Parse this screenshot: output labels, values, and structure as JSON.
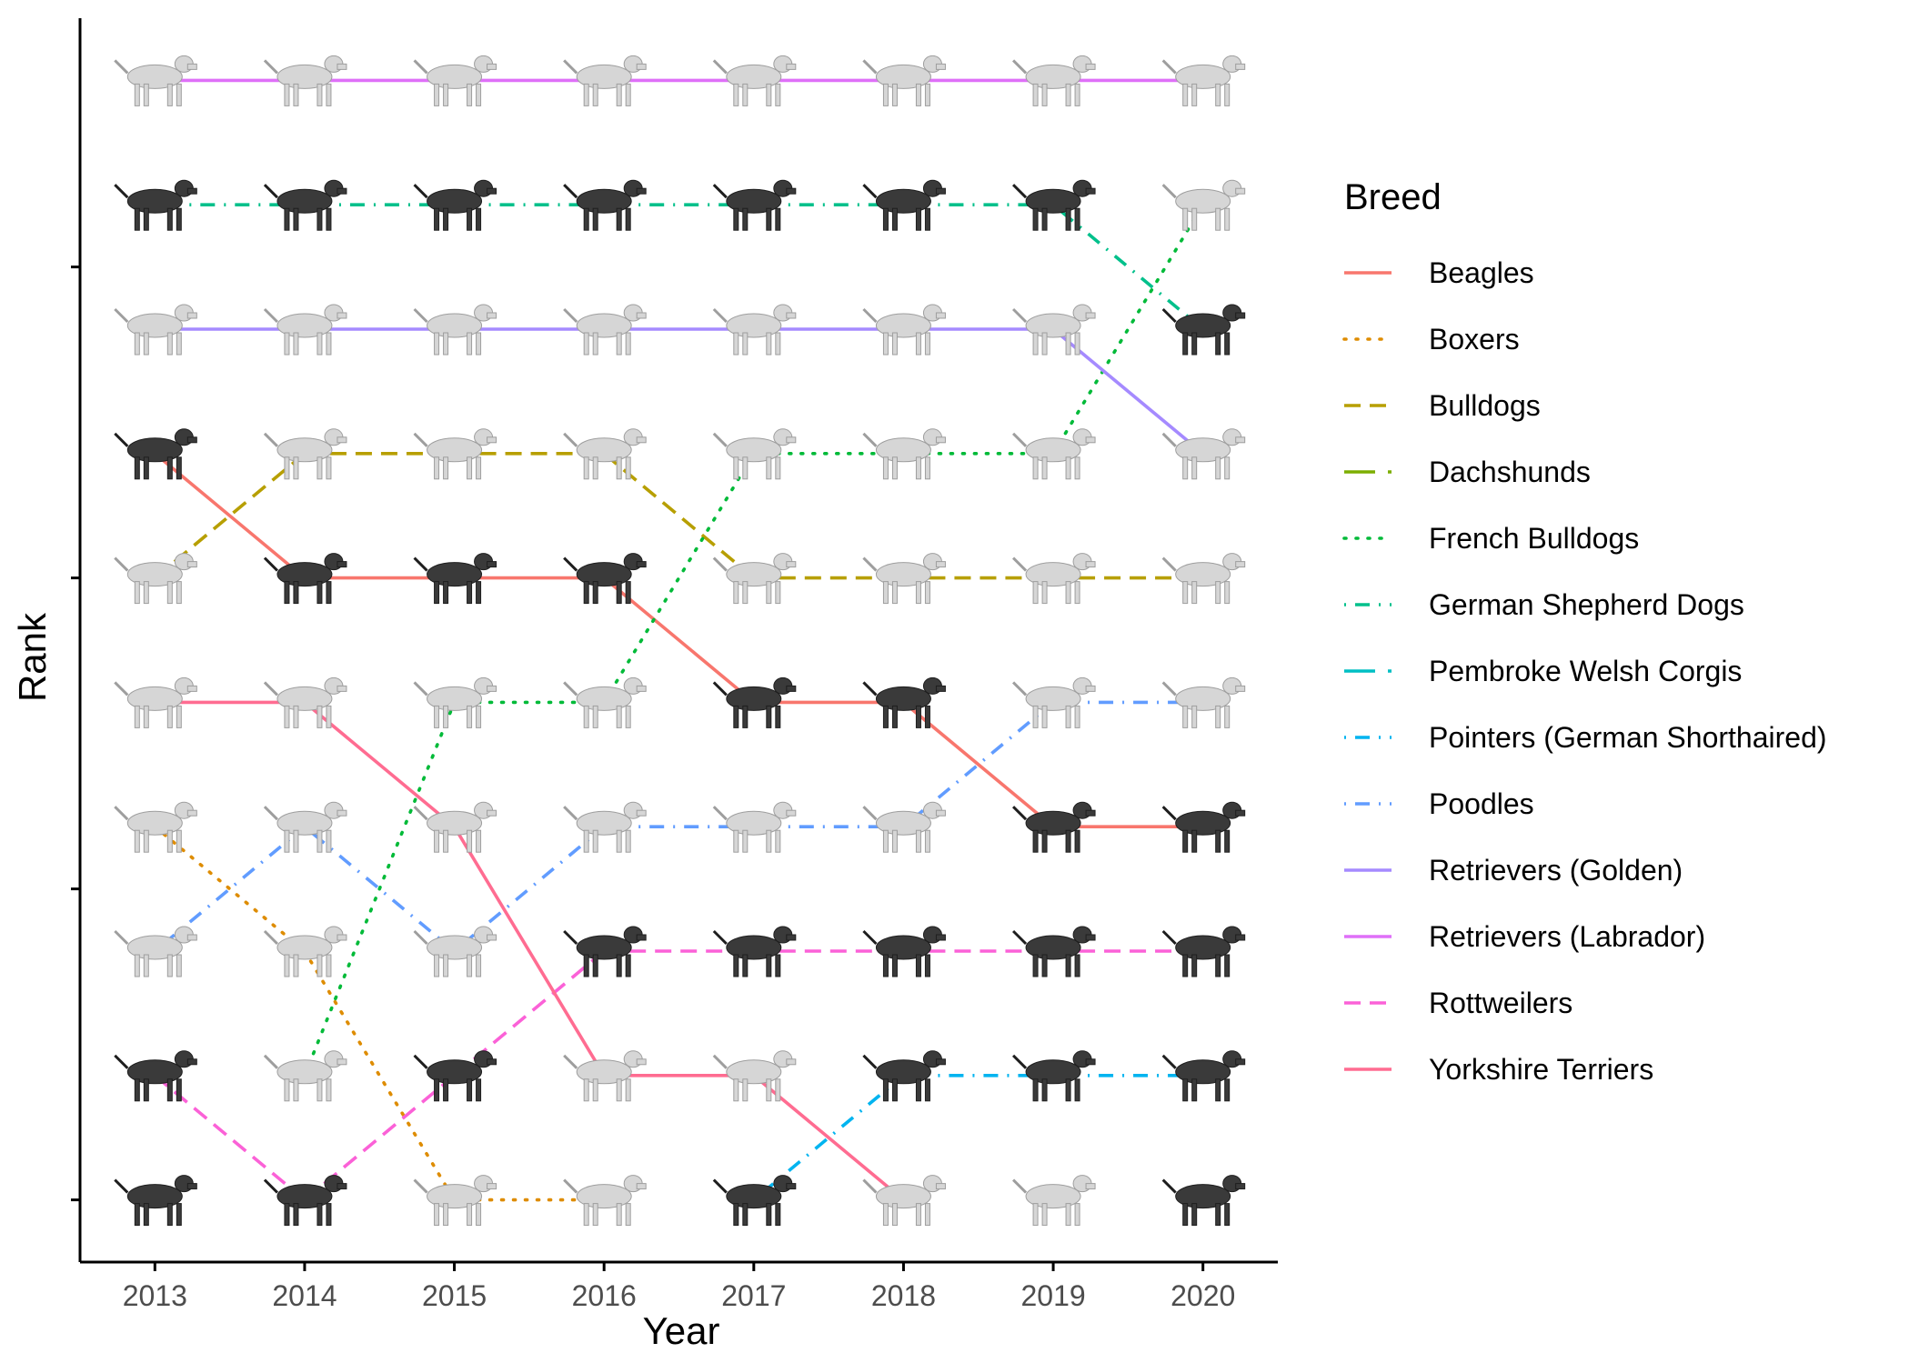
{
  "chart_data": {
    "type": "line",
    "title": "",
    "xlabel": "Year",
    "ylabel": "Rank",
    "x": [
      2013,
      2014,
      2015,
      2016,
      2017,
      2018,
      2019,
      2020
    ],
    "xlim": [
      2012.5,
      2020.5
    ],
    "ylim": [
      10.5,
      0.5
    ],
    "y_tick_labels_shown": false,
    "grid": false,
    "legend": {
      "title": "Breed",
      "position": "right"
    },
    "series": [
      {
        "name": "Beagles",
        "color": "#F8766D",
        "dash": "solid",
        "icon": "beagle-icon",
        "values": [
          4,
          5,
          5,
          5,
          6,
          6,
          7,
          7
        ]
      },
      {
        "name": "Boxers",
        "color": "#DE8C00",
        "dash": "dotted",
        "icon": "boxer-icon",
        "values": [
          7,
          8,
          10,
          10,
          null,
          null,
          null,
          null
        ]
      },
      {
        "name": "Bulldogs",
        "color": "#B79F00",
        "dash": "dashed",
        "icon": "bulldog-icon",
        "values": [
          5,
          4,
          4,
          4,
          5,
          5,
          5,
          5
        ]
      },
      {
        "name": "Dachshunds",
        "color": "#7CAE00",
        "dash": "longdash",
        "icon": "dachshund-icon",
        "values": [
          10,
          null,
          null,
          null,
          null,
          null,
          null,
          10
        ]
      },
      {
        "name": "French Bulldogs",
        "color": "#00BA38",
        "dash": "dotted",
        "icon": "french-bulldog-icon",
        "values": [
          null,
          9,
          6,
          6,
          4,
          4,
          4,
          2
        ]
      },
      {
        "name": "German Shepherd Dogs",
        "color": "#00C08B",
        "dash": "dotdash",
        "icon": "german-shepherd-icon",
        "values": [
          2,
          2,
          2,
          2,
          2,
          2,
          2,
          3
        ]
      },
      {
        "name": "Pembroke Welsh Corgis",
        "color": "#00BFC4",
        "dash": "longdash",
        "icon": "corgi-icon",
        "values": [
          null,
          null,
          null,
          null,
          null,
          null,
          10,
          null
        ]
      },
      {
        "name": "Pointers (German Shorthaired)",
        "color": "#00B4F0",
        "dash": "dotdash",
        "icon": "pointer-icon",
        "values": [
          null,
          null,
          null,
          null,
          10,
          9,
          9,
          9
        ]
      },
      {
        "name": "Poodles",
        "color": "#619CFF",
        "dash": "dotdash",
        "icon": "poodle-icon",
        "values": [
          8,
          7,
          8,
          7,
          7,
          7,
          6,
          6
        ]
      },
      {
        "name": "Retrievers (Golden)",
        "color": "#A58AFF",
        "dash": "solid",
        "icon": "golden-retriever-icon",
        "values": [
          3,
          3,
          3,
          3,
          3,
          3,
          3,
          4
        ]
      },
      {
        "name": "Retrievers (Labrador)",
        "color": "#DF70F8",
        "dash": "solid",
        "icon": "labrador-icon",
        "values": [
          1,
          1,
          1,
          1,
          1,
          1,
          1,
          1
        ]
      },
      {
        "name": "Rottweilers",
        "color": "#FB61D7",
        "dash": "dashed",
        "icon": "rottweiler-icon",
        "values": [
          9,
          10,
          9,
          8,
          8,
          8,
          8,
          8
        ]
      },
      {
        "name": "Yorkshire Terriers",
        "color": "#FF6C91",
        "dash": "solid",
        "icon": "yorkshire-terrier-icon",
        "values": [
          6,
          6,
          7,
          9,
          9,
          10,
          null,
          null
        ]
      }
    ]
  }
}
